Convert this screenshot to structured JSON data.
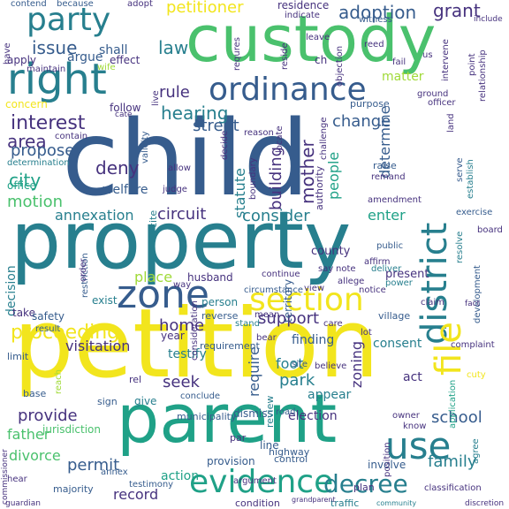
{
  "palette": {
    "yellow": "#f2e51d",
    "lime": "#a0da39",
    "green": "#4ac16d",
    "teal_green": "#1fa187",
    "teal": "#277f8e",
    "blue": "#365c8d",
    "indigo": "#46327e",
    "purple": "#440154"
  },
  "words": [
    {
      "text": "child",
      "color": "blue"
    },
    {
      "text": "petition",
      "color": "yellow"
    },
    {
      "text": "property",
      "color": "teal"
    },
    {
      "text": "parent",
      "color": "teal_green"
    },
    {
      "text": "custody",
      "color": "green"
    },
    {
      "text": "right",
      "color": "teal"
    },
    {
      "text": "district",
      "color": "teal"
    },
    {
      "text": "evidence",
      "color": "teal_green"
    },
    {
      "text": "file",
      "color": "yellow"
    },
    {
      "text": "zone",
      "color": "blue"
    },
    {
      "text": "section",
      "color": "yellow"
    },
    {
      "text": "use",
      "color": "teal"
    },
    {
      "text": "ordinance",
      "color": "blue"
    },
    {
      "text": "party",
      "color": "teal"
    },
    {
      "text": "decree",
      "color": "teal"
    },
    {
      "text": "interest",
      "color": "indigo"
    },
    {
      "text": "proceeding",
      "color": "yellow"
    },
    {
      "text": "adoption",
      "color": "blue"
    },
    {
      "text": "issue",
      "color": "blue"
    },
    {
      "text": "law",
      "color": "teal"
    },
    {
      "text": "grant",
      "color": "indigo"
    },
    {
      "text": "petitioner",
      "color": "yellow"
    },
    {
      "text": "hearing",
      "color": "teal"
    },
    {
      "text": "rule",
      "color": "indigo"
    },
    {
      "text": "mother",
      "color": "indigo"
    },
    {
      "text": "building",
      "color": "indigo"
    },
    {
      "text": "area",
      "color": "indigo"
    },
    {
      "text": "city",
      "color": "teal_green"
    },
    {
      "text": "deny",
      "color": "indigo"
    },
    {
      "text": "propose",
      "color": "blue"
    },
    {
      "text": "street",
      "color": "blue"
    },
    {
      "text": "change",
      "color": "blue"
    },
    {
      "text": "determine",
      "color": "blue"
    },
    {
      "text": "people",
      "color": "teal_green"
    },
    {
      "text": "motion",
      "color": "green"
    },
    {
      "text": "annexation",
      "color": "teal"
    },
    {
      "text": "circuit",
      "color": "indigo"
    },
    {
      "text": "consider",
      "color": "teal"
    },
    {
      "text": "enter",
      "color": "teal_green"
    },
    {
      "text": "statute",
      "color": "teal"
    },
    {
      "text": "support",
      "color": "indigo"
    },
    {
      "text": "home",
      "color": "indigo"
    },
    {
      "text": "seek",
      "color": "indigo"
    },
    {
      "text": "require",
      "color": "blue"
    },
    {
      "text": "zoning",
      "color": "indigo"
    },
    {
      "text": "park",
      "color": "teal"
    },
    {
      "text": "foot",
      "color": "teal"
    },
    {
      "text": "school",
      "color": "blue"
    },
    {
      "text": "family",
      "color": "teal"
    },
    {
      "text": "provide",
      "color": "indigo"
    },
    {
      "text": "father",
      "color": "green"
    },
    {
      "text": "permit",
      "color": "blue"
    },
    {
      "text": "divorce",
      "color": "green"
    },
    {
      "text": "visitation",
      "color": "indigo"
    },
    {
      "text": "record",
      "color": "indigo"
    },
    {
      "text": "action",
      "color": "teal_green"
    },
    {
      "text": "decision",
      "color": "teal"
    },
    {
      "text": "county",
      "color": "indigo"
    },
    {
      "text": "present",
      "color": "indigo"
    },
    {
      "text": "finding",
      "color": "blue"
    },
    {
      "text": "consent",
      "color": "teal"
    },
    {
      "text": "appear",
      "color": "teal"
    },
    {
      "text": "act",
      "color": "indigo"
    },
    {
      "text": "election",
      "color": "indigo"
    },
    {
      "text": "dismiss",
      "color": "blue"
    },
    {
      "text": "testify",
      "color": "teal"
    },
    {
      "text": "concern",
      "color": "yellow"
    },
    {
      "text": "office",
      "color": "teal_green"
    },
    {
      "text": "welfare",
      "color": "blue"
    },
    {
      "text": "person",
      "color": "teal"
    },
    {
      "text": "husband",
      "color": "indigo"
    },
    {
      "text": "place",
      "color": "lime"
    },
    {
      "text": "shall",
      "color": "blue"
    },
    {
      "text": "argue",
      "color": "blue"
    },
    {
      "text": "effect",
      "color": "indigo"
    },
    {
      "text": "apply",
      "color": "indigo"
    },
    {
      "text": "matter",
      "color": "lime"
    },
    {
      "text": "follow",
      "color": "indigo"
    },
    {
      "text": "take",
      "color": "indigo"
    },
    {
      "text": "safety",
      "color": "blue"
    },
    {
      "text": "year",
      "color": "indigo"
    },
    {
      "text": "give",
      "color": "teal"
    },
    {
      "text": "sign",
      "color": "blue"
    },
    {
      "text": "base",
      "color": "blue"
    },
    {
      "text": "limit",
      "color": "blue"
    },
    {
      "text": "residence",
      "color": "indigo"
    },
    {
      "text": "indicate",
      "color": "indigo"
    },
    {
      "text": "witness",
      "color": "blue"
    },
    {
      "text": "include",
      "color": "indigo"
    },
    {
      "text": "adopt",
      "color": "indigo"
    },
    {
      "text": "because",
      "color": "blue"
    },
    {
      "text": "contend",
      "color": "blue"
    },
    {
      "text": "board",
      "color": "indigo"
    },
    {
      "text": "village",
      "color": "blue"
    },
    {
      "text": "exist",
      "color": "teal"
    },
    {
      "text": "municipality",
      "color": "blue"
    },
    {
      "text": "majority",
      "color": "blue"
    },
    {
      "text": "jurisdiction",
      "color": "green"
    },
    {
      "text": "provision",
      "color": "blue"
    },
    {
      "text": "highway",
      "color": "blue"
    },
    {
      "text": "involve",
      "color": "blue"
    },
    {
      "text": "plan",
      "color": "indigo"
    },
    {
      "text": "traffic",
      "color": "teal"
    },
    {
      "text": "condition",
      "color": "indigo"
    },
    {
      "text": "guardian",
      "color": "indigo"
    },
    {
      "text": "testimony",
      "color": "blue"
    },
    {
      "text": "commissioner",
      "color": "indigo"
    },
    {
      "text": "allow",
      "color": "indigo"
    },
    {
      "text": "judge",
      "color": "indigo"
    },
    {
      "text": "authority",
      "color": "indigo"
    },
    {
      "text": "raise",
      "color": "blue"
    },
    {
      "text": "remand",
      "color": "indigo"
    },
    {
      "text": "establish",
      "color": "teal"
    },
    {
      "text": "purpose",
      "color": "blue"
    },
    {
      "text": "reason",
      "color": "indigo"
    },
    {
      "text": "fail",
      "color": "indigo"
    },
    {
      "text": "ground",
      "color": "indigo"
    },
    {
      "text": "view",
      "color": "indigo"
    },
    {
      "text": "continue",
      "color": "indigo"
    },
    {
      "text": "affirm",
      "color": "indigo"
    },
    {
      "text": "deliver",
      "color": "teal"
    },
    {
      "text": "claim",
      "color": "indigo"
    },
    {
      "text": "notice",
      "color": "indigo"
    },
    {
      "text": "note",
      "color": "indigo"
    },
    {
      "text": "allege",
      "color": "indigo"
    },
    {
      "text": "say",
      "color": "indigo"
    },
    {
      "text": "territory",
      "color": "blue"
    },
    {
      "text": "public",
      "color": "blue"
    },
    {
      "text": "application",
      "color": "teal_green"
    },
    {
      "text": "exercise",
      "color": "blue"
    },
    {
      "text": "development",
      "color": "blue"
    },
    {
      "text": "complaint",
      "color": "indigo"
    },
    {
      "text": "lot",
      "color": "indigo"
    },
    {
      "text": "care",
      "color": "indigo"
    },
    {
      "text": "review",
      "color": "teal"
    },
    {
      "text": "bear",
      "color": "indigo"
    },
    {
      "text": "owner",
      "color": "indigo"
    },
    {
      "text": "agree",
      "color": "teal"
    },
    {
      "text": "know",
      "color": "indigo"
    },
    {
      "text": "control",
      "color": "blue"
    },
    {
      "text": "classification",
      "color": "indigo"
    },
    {
      "text": "line",
      "color": "blue"
    },
    {
      "text": "par",
      "color": "indigo"
    },
    {
      "text": "argument",
      "color": "indigo"
    },
    {
      "text": "annex",
      "color": "blue"
    },
    {
      "text": "conclude",
      "color": "blue"
    },
    {
      "text": "rel",
      "color": "indigo"
    },
    {
      "text": "reverse",
      "color": "blue"
    },
    {
      "text": "requirement",
      "color": "blue"
    },
    {
      "text": "circumstance",
      "color": "blue"
    },
    {
      "text": "amendment",
      "color": "indigo"
    },
    {
      "text": "boundary",
      "color": "indigo"
    },
    {
      "text": "relationship",
      "color": "indigo"
    },
    {
      "text": "point",
      "color": "indigo"
    },
    {
      "text": "land",
      "color": "indigo"
    },
    {
      "text": "cite",
      "color": "teal"
    },
    {
      "text": "resolve",
      "color": "teal"
    },
    {
      "text": "restriction",
      "color": "blue"
    },
    {
      "text": "cuty",
      "color": "yellow"
    },
    {
      "text": "reach",
      "color": "lime"
    },
    {
      "text": "hear",
      "color": "indigo"
    },
    {
      "text": "discretion",
      "color": "indigo"
    },
    {
      "text": "community",
      "color": "teal"
    },
    {
      "text": "grandparent",
      "color": "indigo"
    },
    {
      "text": "position",
      "color": "indigo"
    },
    {
      "text": "road",
      "color": "blue"
    },
    {
      "text": "serve",
      "color": "blue"
    },
    {
      "text": "way",
      "color": "indigo"
    },
    {
      "text": "site",
      "color": "blue"
    },
    {
      "text": "believe",
      "color": "indigo"
    },
    {
      "text": "us",
      "color": "indigo"
    },
    {
      "text": "reed",
      "color": "indigo"
    },
    {
      "text": "leave",
      "color": "indigo"
    },
    {
      "text": "ch",
      "color": "indigo"
    },
    {
      "text": "intervene",
      "color": "indigo"
    },
    {
      "text": "maintain",
      "color": "indigo"
    },
    {
      "text": "wife",
      "color": "lime"
    },
    {
      "text": "contain",
      "color": "indigo"
    },
    {
      "text": "determination",
      "color": "teal"
    },
    {
      "text": "validity",
      "color": "blue"
    },
    {
      "text": "decide",
      "color": "indigo"
    },
    {
      "text": "challenge",
      "color": "indigo"
    },
    {
      "text": "locate",
      "color": "indigo"
    },
    {
      "text": "officer",
      "color": "indigo"
    },
    {
      "text": "order",
      "color": "indigo"
    },
    {
      "text": "result",
      "color": "blue"
    },
    {
      "text": "fact",
      "color": "indigo"
    },
    {
      "text": "objection",
      "color": "indigo"
    },
    {
      "text": "power",
      "color": "teal"
    },
    {
      "text": "stand",
      "color": "teal"
    },
    {
      "text": "live",
      "color": "indigo"
    },
    {
      "text": "mean",
      "color": "indigo"
    },
    {
      "text": "consideration",
      "color": "indigo"
    },
    {
      "text": "requres",
      "color": "indigo"
    },
    {
      "text": "reside",
      "color": "indigo"
    },
    {
      "text": "cate",
      "color": "indigo"
    },
    {
      "text": "have",
      "color": "indigo"
    }
  ]
}
